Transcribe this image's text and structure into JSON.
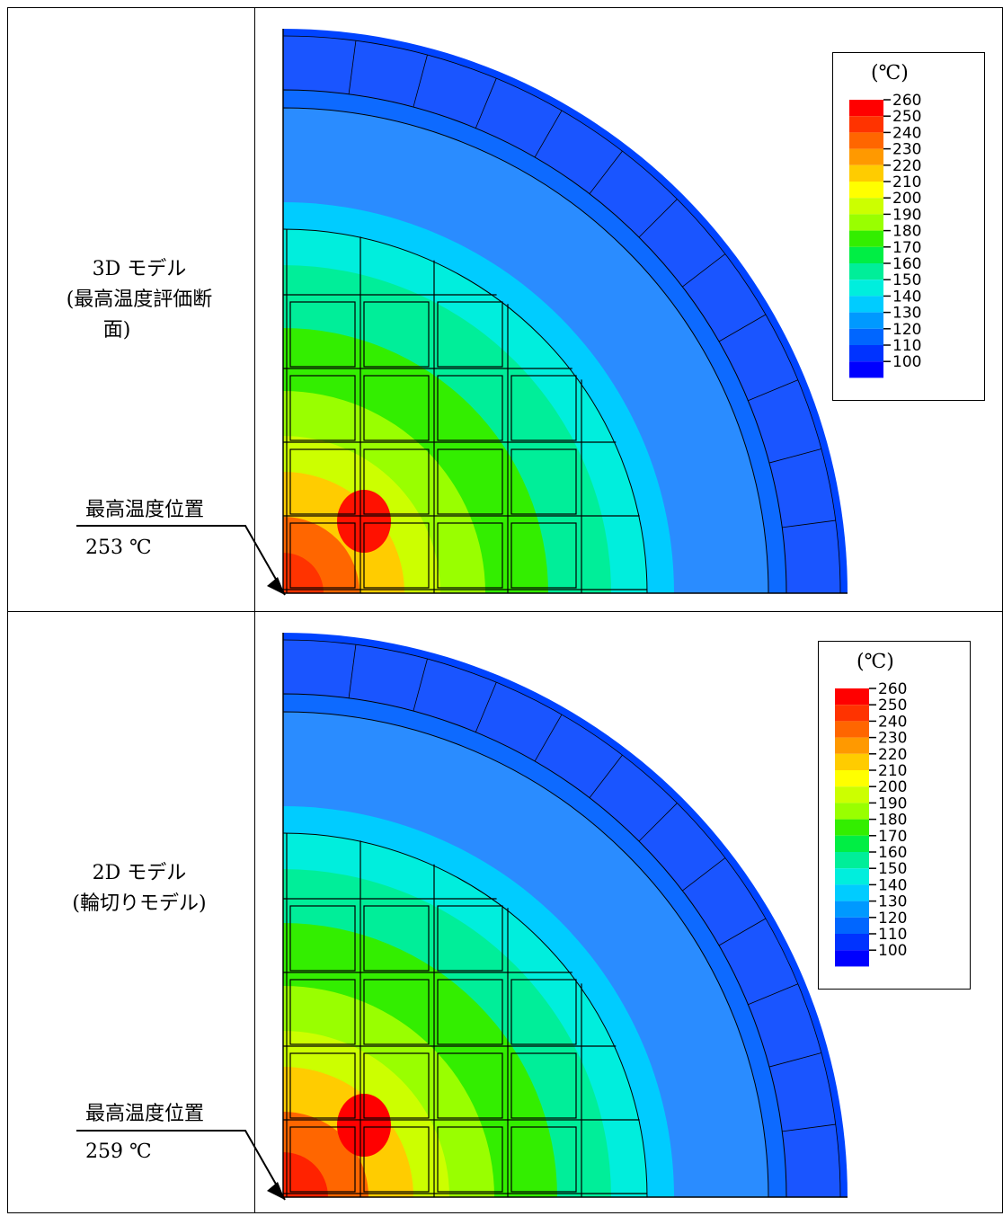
{
  "panels": [
    {
      "model_name": "3D モデル",
      "model_desc_1": "(最高温度評価断",
      "model_desc_2": "面)",
      "max_label": "最高温度位置",
      "max_value": "253 ℃"
    },
    {
      "model_name": "2D モデル",
      "model_desc_1": "(輪切りモデル)",
      "model_desc_2": "",
      "max_label": "最高温度位置",
      "max_value": "259 ℃"
    }
  ],
  "legend": {
    "unit": "(℃)",
    "ticks": [
      "260",
      "250",
      "240",
      "230",
      "220",
      "210",
      "200",
      "190",
      "180",
      "170",
      "160",
      "150",
      "140",
      "130",
      "120",
      "110",
      "100"
    ],
    "colors": [
      "#ff0000",
      "#ff3300",
      "#ff6600",
      "#ff9900",
      "#ffcc00",
      "#ffff00",
      "#ccff00",
      "#99ff00",
      "#33ee00",
      "#00ee44",
      "#00ee99",
      "#00eedd",
      "#00ccff",
      "#0099ff",
      "#0066ff",
      "#0033ff",
      "#0000ff"
    ]
  }
}
